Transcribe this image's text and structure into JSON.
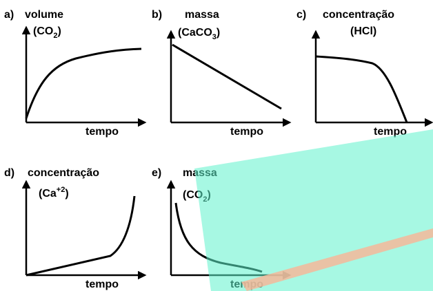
{
  "panels": [
    {
      "letter": "a)",
      "quantity": "volume",
      "formula": {
        "base": "(CO",
        "sub": "2",
        "tail": ")"
      },
      "xlabel": "tempo"
    },
    {
      "letter": "b)",
      "quantity": "massa",
      "formula": {
        "base": "(CaCO",
        "sub": "3",
        "tail": ")"
      },
      "xlabel": "tempo"
    },
    {
      "letter": "c)",
      "quantity": "concentração",
      "formula": {
        "base": "(HCl)"
      },
      "xlabel": "tempo"
    },
    {
      "letter": "d)",
      "quantity": "concentração",
      "formula": {
        "base": "(Ca",
        "sup": "+2",
        "tail": ")"
      },
      "xlabel": "tempo"
    },
    {
      "letter": "e)",
      "quantity": "massa",
      "formula": {
        "base": "(CO",
        "sub": "2",
        "tail": ")"
      },
      "xlabel": "tempo"
    }
  ]
}
